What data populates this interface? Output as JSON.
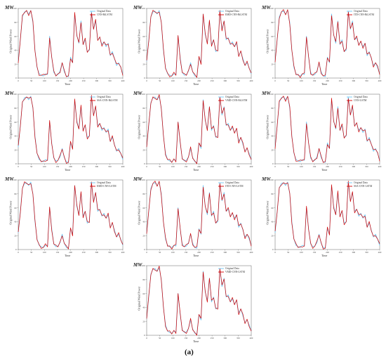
{
  "caption": "(a)",
  "panel_common": {
    "unit_label": "MW",
    "ylabel": "Original Wind Power",
    "xlabel": "Time",
    "x_ticks": [
      0,
      50,
      100,
      150,
      200,
      250,
      300,
      350,
      400
    ],
    "y_ticks": [
      0,
      20,
      40,
      60,
      80,
      100
    ],
    "colors": {
      "original": "#6ec6f2",
      "prediction": "#d40000"
    }
  },
  "chart_data": [
    {
      "type": "line",
      "legend": [
        "Original Data",
        "CNN-BiLSTM"
      ]
    },
    {
      "type": "line",
      "legend": [
        "Original Data",
        "EMD-CNN-BiLSTM"
      ]
    },
    {
      "type": "line",
      "legend": [
        "Original Data",
        "ITD-CNN-BiLSTM"
      ]
    },
    {
      "type": "line",
      "legend": [
        "Original Data",
        "SSA-CNN-BiLSTM"
      ]
    },
    {
      "type": "line",
      "legend": [
        "Original Data",
        "VMD-CNN-BiLSTM"
      ]
    },
    {
      "type": "line",
      "legend": [
        "Original Data",
        "CNN-LSTM"
      ]
    },
    {
      "type": "line",
      "legend": [
        "Original Data",
        "EMD-CNN-LSTM"
      ]
    },
    {
      "type": "line",
      "legend": [
        "Original Data",
        "ITD-CNN-LSTM"
      ]
    },
    {
      "type": "line",
      "legend": [
        "Original Data",
        "SSA-CNN-LSTM"
      ]
    },
    {
      "type": "line",
      "legend": [
        "Original Data",
        "VMD-CNN-LSTM"
      ]
    }
  ],
  "series_original": {
    "x": [
      0,
      8,
      16,
      24,
      32,
      40,
      48,
      56,
      64,
      72,
      80,
      88,
      96,
      104,
      112,
      120,
      128,
      136,
      144,
      152,
      160,
      168,
      176,
      184,
      192,
      200,
      208,
      216,
      224,
      232,
      240,
      248,
      256,
      264,
      272,
      280,
      288,
      296,
      304,
      312,
      320,
      328,
      336,
      344,
      352,
      360,
      368,
      376,
      384,
      392,
      400
    ],
    "y": [
      24,
      55,
      88,
      95,
      96,
      92,
      97,
      80,
      40,
      15,
      6,
      4,
      3,
      6,
      5,
      60,
      30,
      8,
      4,
      5,
      10,
      22,
      9,
      3,
      2,
      30,
      22,
      92,
      62,
      50,
      82,
      48,
      55,
      38,
      40,
      96,
      70,
      82,
      55,
      58,
      48,
      52,
      45,
      50,
      32,
      38,
      28,
      18,
      22,
      15,
      6
    ]
  }
}
